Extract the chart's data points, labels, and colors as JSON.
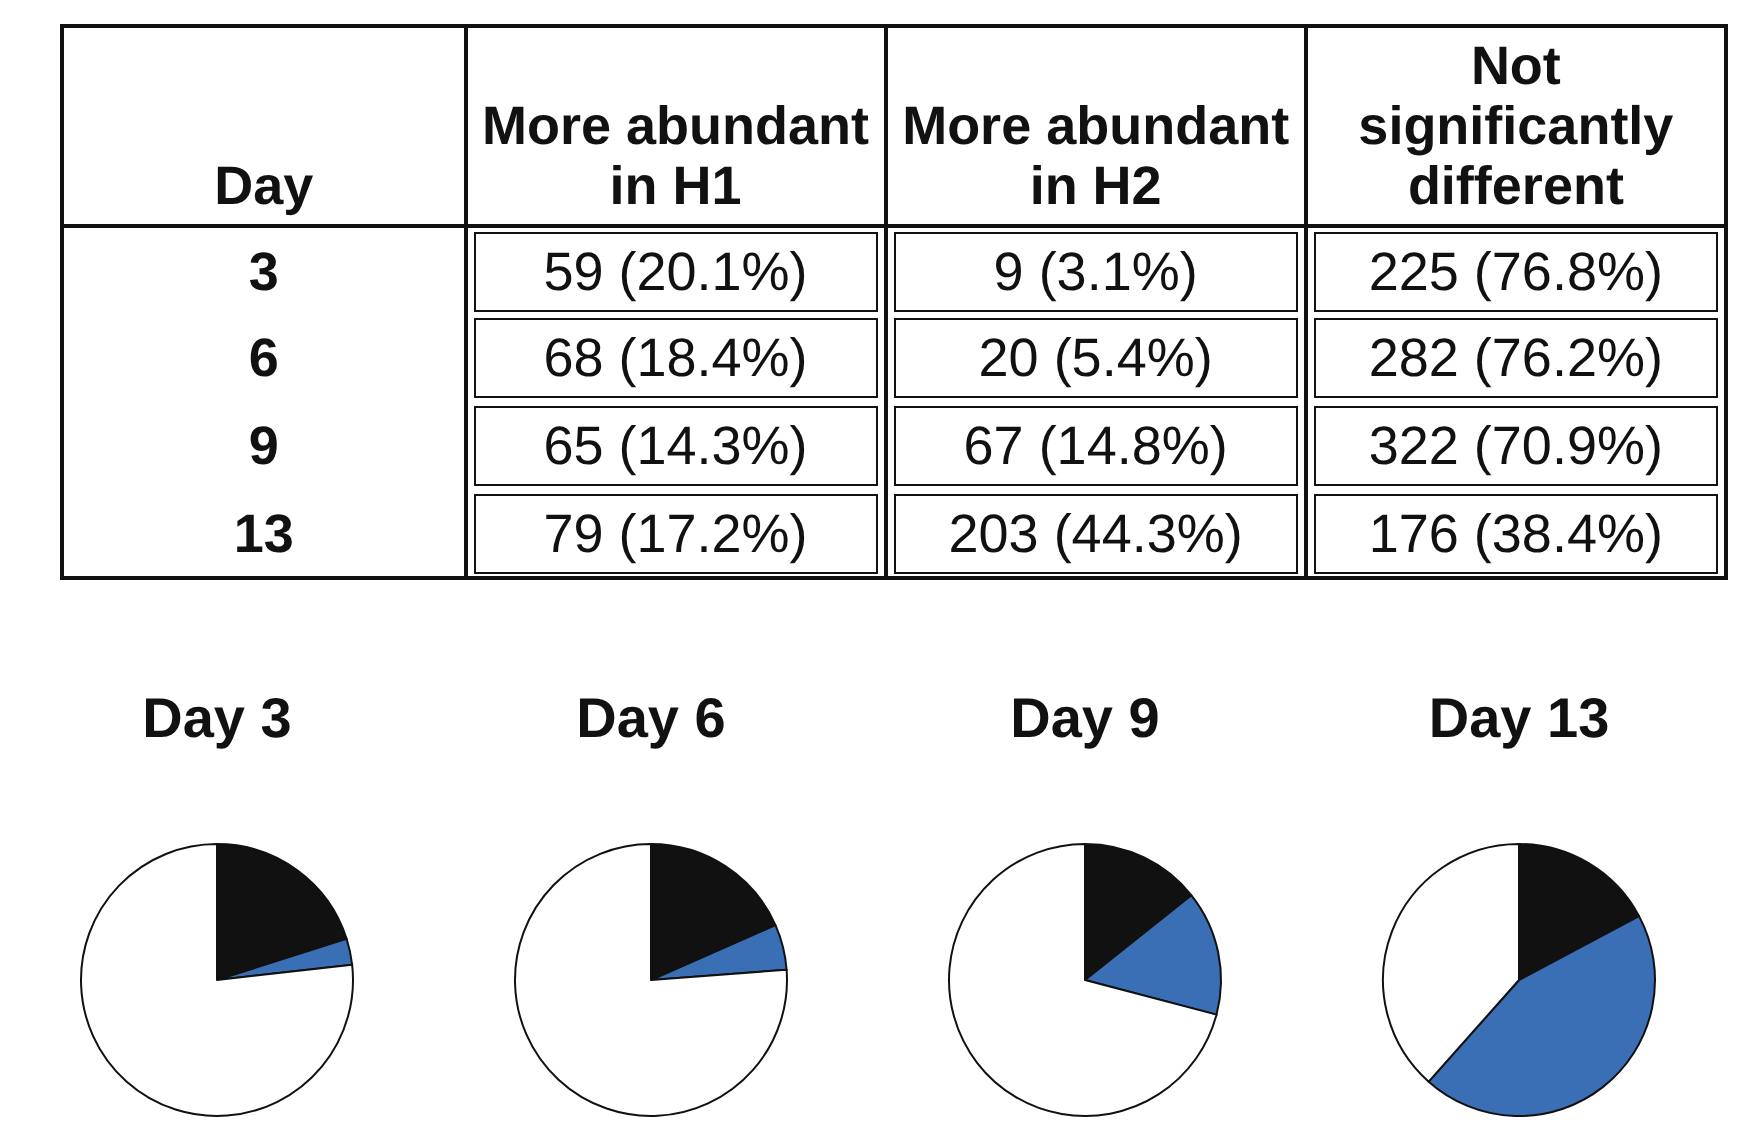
{
  "chart_data": [
    {
      "type": "other",
      "annotations": [
        "Day",
        "3",
        "6",
        "9",
        "13"
      ]
    },
    {
      "type": "pie",
      "title": "Day 3",
      "categories": [
        "More abundant in H1",
        "More abundant in H2",
        "Not significantly different"
      ],
      "values": [
        20.1,
        3.1,
        76.8
      ],
      "value_labels": [
        "59 (20.1%)",
        "9 (3.1%)",
        "225 (76.8%)"
      ],
      "colors": [
        "#111111",
        "#3a6fb5",
        "#ffffff"
      ]
    },
    {
      "type": "pie",
      "title": "Day 6",
      "values": [
        18.4,
        5.4,
        76.2
      ],
      "value_labels": [
        "68 (18.4%)",
        "20 (5.4%)",
        "282 (76.2%)"
      ],
      "colors": [
        "#111111",
        "#3a6fb5",
        "#ffffff"
      ]
    },
    {
      "type": "pie",
      "title": "Day 9",
      "values": [
        14.3,
        14.8,
        70.9
      ],
      "value_labels": [
        "65 (14.3%)",
        "67 (14.8%)",
        "322 (70.9%)"
      ],
      "colors": [
        "#111111",
        "#3a6fb5",
        "#ffffff"
      ]
    },
    {
      "type": "pie",
      "title": "Day 13",
      "values": [
        17.2,
        44.3,
        38.4
      ],
      "value_labels": [
        "79 (17.2%)",
        "203 (44.3%)",
        "176 (38.4%)"
      ],
      "colors": [
        "#111111",
        "#3a6fb5",
        "#ffffff"
      ]
    }
  ]
}
